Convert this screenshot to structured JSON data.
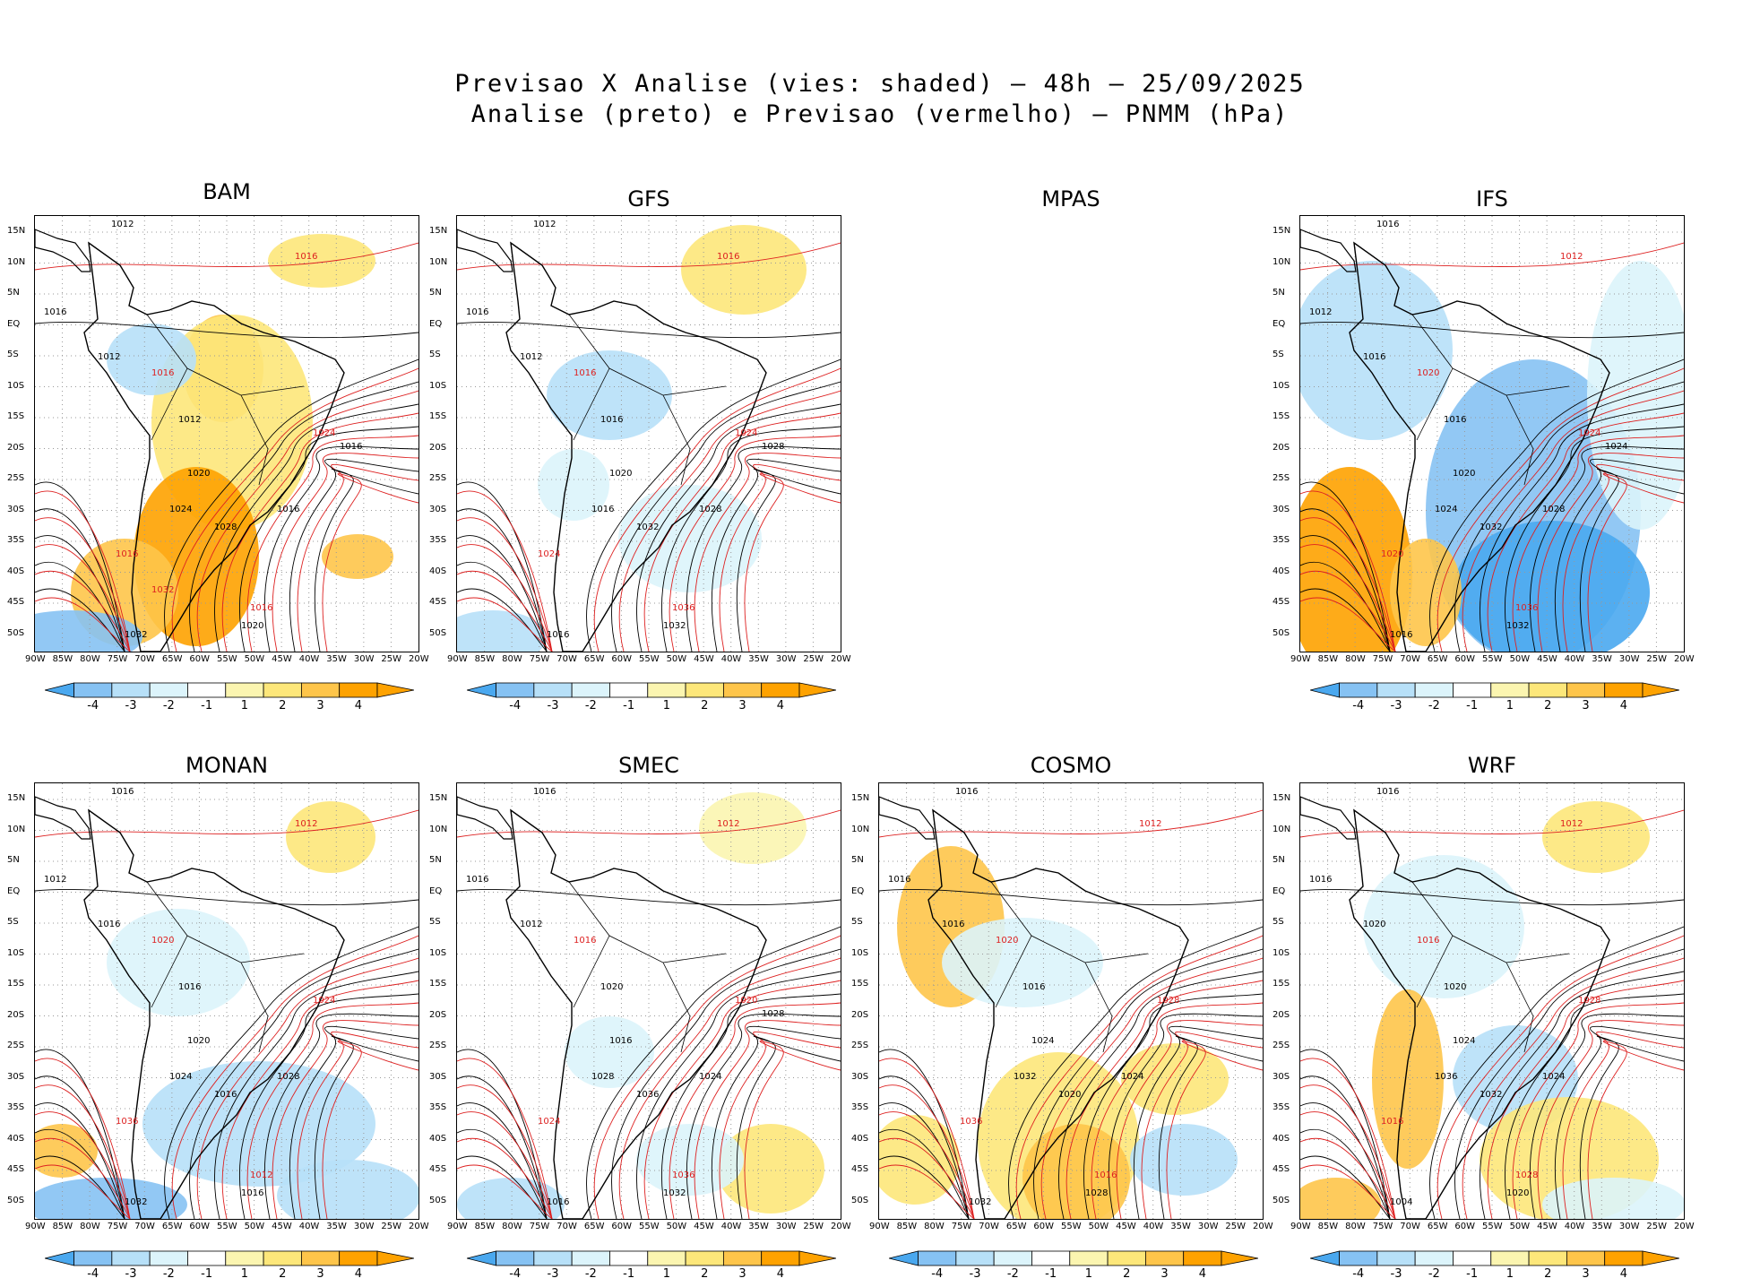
{
  "title": {
    "line1": "Previsao X Analise (vies: shaded) – 48h – 25/09/2025",
    "line2": "Analise (preto) e Previsao (vermelho) – PNMM (hPa)"
  },
  "colors": {
    "neg4": "#4aa8ef",
    "neg3": "#86c2f3",
    "neg2": "#b7e0f8",
    "neg1": "#dcf4fb",
    "zero": "#ffffff",
    "pos1": "#fbf5b0",
    "pos2": "#fde77a",
    "pos3": "#fec54a",
    "pos4": "#fea200",
    "analysis": "#000000",
    "forecast": "#dd2020"
  },
  "axes": {
    "lat_labels": [
      "15N",
      "10N",
      "5N",
      "EQ",
      "5S",
      "10S",
      "15S",
      "20S",
      "25S",
      "30S",
      "35S",
      "40S",
      "45S",
      "50S"
    ],
    "lon_labels": [
      "90W",
      "85W",
      "80W",
      "75W",
      "70W",
      "65W",
      "60W",
      "55W",
      "50W",
      "45W",
      "40W",
      "35W",
      "30W",
      "25W",
      "20W"
    ]
  },
  "colorbar": {
    "labels": [
      "-4",
      "-3",
      "-2",
      "-1",
      "1",
      "2",
      "3",
      "4"
    ]
  },
  "panels": [
    {
      "name": "BAM",
      "has_map": true
    },
    {
      "name": "GFS",
      "has_map": true
    },
    {
      "name": "MPAS",
      "has_map": false
    },
    {
      "name": "IFS",
      "has_map": true
    },
    {
      "name": "MONAN",
      "has_map": true
    },
    {
      "name": "SMEC",
      "has_map": true
    },
    {
      "name": "COSMO",
      "has_map": true
    },
    {
      "name": "WRF",
      "has_map": true
    }
  ],
  "contour_labels": {
    "BAM": [
      "1012",
      "1016",
      "1016",
      "1012",
      "1016",
      "1012",
      "1020",
      "1024",
      "1016",
      "1024",
      "1016",
      "1028",
      "1032",
      "1016",
      "1020",
      "1016",
      "1032"
    ],
    "GFS": [
      "1012",
      "1016",
      "1016",
      "1012",
      "1016",
      "1016",
      "1020",
      "1024",
      "1028",
      "1016",
      "1024",
      "1032",
      "1016",
      "1036",
      "1032",
      "1028"
    ],
    "IFS": [
      "1016",
      "1012",
      "1012",
      "1016",
      "1020",
      "1016",
      "1020",
      "1024",
      "1028",
      "1024",
      "1020",
      "1032",
      "1016",
      "1036",
      "1032",
      "1024"
    ],
    "MONAN": [
      "1016",
      "1012",
      "1012",
      "1016",
      "1020",
      "1016",
      "1020",
      "1024",
      "1028",
      "1024",
      "1036",
      "1016",
      "1032",
      "1012",
      "1016"
    ],
    "SMEC": [
      "1016",
      "1012",
      "1016",
      "1012",
      "1016",
      "1020",
      "1016",
      "1020",
      "1024",
      "1028",
      "1024",
      "1036",
      "1016",
      "1036",
      "1032",
      "1028"
    ],
    "COSMO": [
      "1016",
      "1012",
      "1016",
      "1016",
      "1020",
      "1016",
      "1024",
      "1028",
      "1024",
      "1032",
      "1036",
      "1020",
      "1032",
      "1016",
      "1028"
    ],
    "WRF": [
      "1016",
      "1012",
      "1016",
      "1020",
      "1016",
      "1020",
      "1024",
      "1028",
      "1024",
      "1036",
      "1016",
      "1032",
      "1004",
      "1028",
      "1020"
    ]
  }
}
